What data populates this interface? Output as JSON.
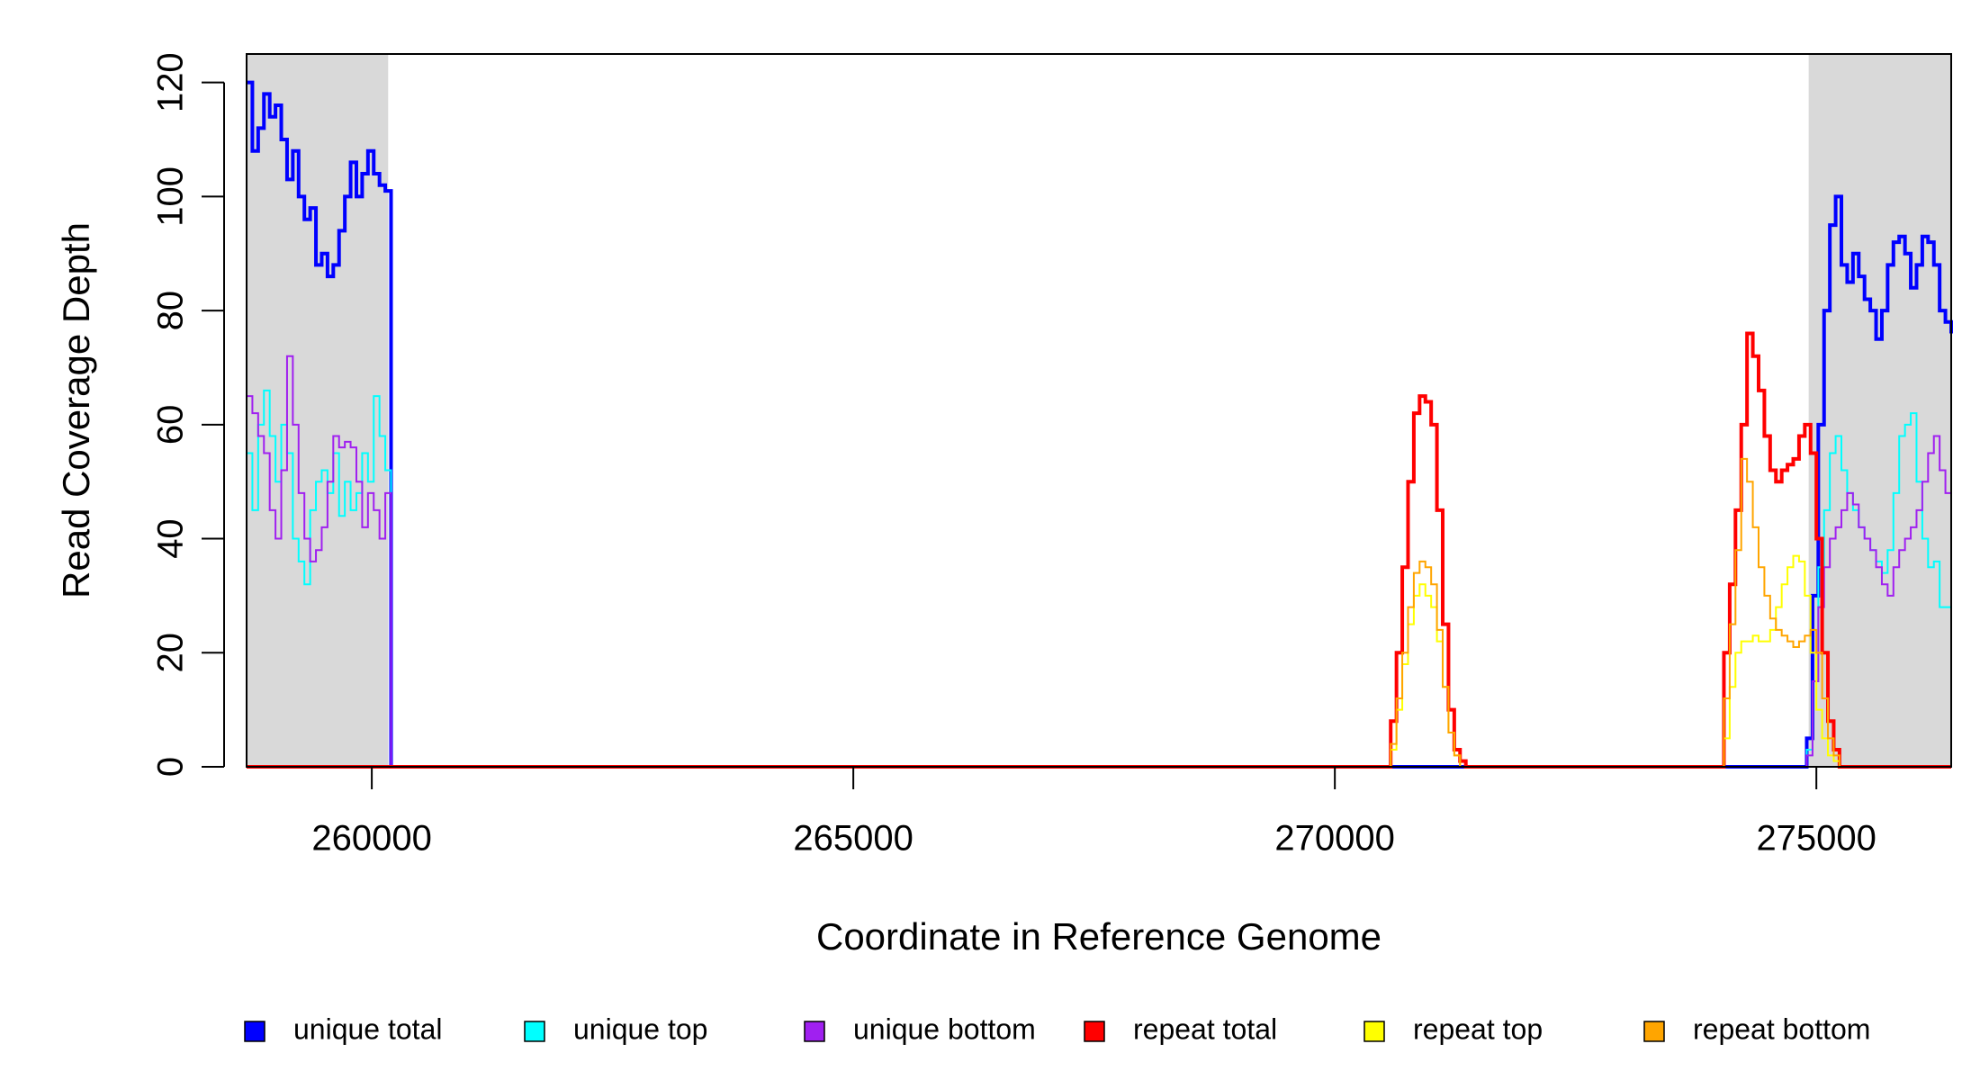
{
  "chart_data": {
    "type": "step",
    "x_label": "Coordinate in Reference Genome",
    "y_label": "Read Coverage Depth",
    "xlim": [
      258700,
      276400
    ],
    "ylim": [
      0,
      125
    ],
    "xticks": [
      260000,
      265000,
      270000,
      275000
    ],
    "yticks": [
      0,
      20,
      40,
      60,
      80,
      100,
      120
    ],
    "shaded_regions": [
      [
        258700,
        260170
      ],
      [
        274920,
        276400
      ]
    ],
    "shade_color": "#d9d9d9",
    "legend": "bottom",
    "series": [
      {
        "name": "unique total",
        "color": "#0000ff",
        "x": [
          258700,
          258760,
          258820,
          258880,
          258940,
          259000,
          259060,
          259120,
          259180,
          259240,
          259300,
          259360,
          259420,
          259480,
          259540,
          259600,
          259660,
          259720,
          259780,
          259840,
          259900,
          259960,
          260020,
          260080,
          260140,
          260200,
          274840,
          274900,
          274960,
          275020,
          275080,
          275140,
          275200,
          275260,
          275320,
          275380,
          275440,
          275500,
          275560,
          275620,
          275680,
          275740,
          275800,
          275860,
          275920,
          275980,
          276040,
          276100,
          276160,
          276220,
          276280,
          276340,
          276400
        ],
        "values": [
          120,
          108,
          112,
          118,
          114,
          116,
          110,
          103,
          108,
          100,
          96,
          98,
          88,
          90,
          86,
          88,
          94,
          100,
          106,
          100,
          104,
          108,
          104,
          102,
          101,
          0,
          0,
          5,
          30,
          60,
          80,
          95,
          100,
          88,
          85,
          90,
          86,
          82,
          80,
          75,
          80,
          88,
          92,
          93,
          90,
          84,
          88,
          93,
          92,
          88,
          80,
          78,
          76
        ]
      },
      {
        "name": "unique top",
        "color": "#00ffff",
        "x": [
          258700,
          258760,
          258820,
          258880,
          258940,
          259000,
          259060,
          259120,
          259180,
          259240,
          259300,
          259360,
          259420,
          259480,
          259540,
          259600,
          259660,
          259720,
          259780,
          259840,
          259900,
          259960,
          260020,
          260080,
          260140,
          260200,
          274840,
          274900,
          274960,
          275020,
          275080,
          275140,
          275200,
          275260,
          275320,
          275380,
          275440,
          275500,
          275560,
          275620,
          275680,
          275740,
          275800,
          275860,
          275920,
          275980,
          276040,
          276100,
          276160,
          276220,
          276280,
          276340,
          276400
        ],
        "values": [
          55,
          45,
          60,
          66,
          58,
          50,
          60,
          55,
          40,
          36,
          32,
          45,
          50,
          52,
          48,
          55,
          44,
          50,
          45,
          48,
          55,
          50,
          65,
          58,
          52,
          0,
          0,
          3,
          15,
          35,
          45,
          55,
          58,
          52,
          48,
          45,
          42,
          40,
          38,
          36,
          34,
          38,
          48,
          58,
          60,
          62,
          50,
          40,
          35,
          36,
          28,
          28,
          29
        ]
      },
      {
        "name": "unique bottom",
        "color": "#a020f0",
        "x": [
          258700,
          258760,
          258820,
          258880,
          258940,
          259000,
          259060,
          259120,
          259180,
          259240,
          259300,
          259360,
          259420,
          259480,
          259540,
          259600,
          259660,
          259720,
          259780,
          259840,
          259900,
          259960,
          260020,
          260080,
          260140,
          260200,
          274840,
          274900,
          274960,
          275020,
          275080,
          275140,
          275200,
          275260,
          275320,
          275380,
          275440,
          275500,
          275560,
          275620,
          275680,
          275740,
          275800,
          275860,
          275920,
          275980,
          276040,
          276100,
          276160,
          276220,
          276280,
          276340,
          276400
        ],
        "values": [
          65,
          62,
          58,
          55,
          45,
          40,
          52,
          72,
          60,
          48,
          40,
          36,
          38,
          42,
          50,
          58,
          56,
          57,
          56,
          50,
          42,
          48,
          45,
          40,
          48,
          0,
          0,
          2,
          15,
          28,
          35,
          40,
          42,
          45,
          48,
          46,
          42,
          40,
          38,
          35,
          32,
          30,
          35,
          38,
          40,
          42,
          45,
          50,
          55,
          58,
          52,
          48,
          45
        ]
      },
      {
        "name": "repeat total",
        "color": "#ff0000",
        "x": [
          258700,
          270520,
          270580,
          270640,
          270700,
          270760,
          270820,
          270880,
          270940,
          271000,
          271060,
          271120,
          271180,
          271240,
          271300,
          271360,
          273980,
          274040,
          274100,
          274160,
          274220,
          274280,
          274340,
          274400,
          274460,
          274520,
          274580,
          274640,
          274700,
          274760,
          274820,
          274880,
          274940,
          275000,
          275060,
          275120,
          275180,
          275240,
          276400
        ],
        "values": [
          0,
          0,
          8,
          20,
          35,
          50,
          62,
          65,
          64,
          60,
          45,
          25,
          10,
          3,
          1,
          0,
          0,
          20,
          32,
          45,
          60,
          76,
          72,
          66,
          58,
          52,
          50,
          52,
          53,
          54,
          58,
          60,
          55,
          40,
          20,
          8,
          3,
          0,
          0
        ]
      },
      {
        "name": "repeat top",
        "color": "#ffff00",
        "x": [
          258700,
          270520,
          270580,
          270640,
          270700,
          270760,
          270820,
          270880,
          270940,
          271000,
          271060,
          271120,
          271180,
          271240,
          271300,
          271360,
          273980,
          274040,
          274100,
          274160,
          274220,
          274280,
          274340,
          274400,
          274460,
          274520,
          274580,
          274640,
          274700,
          274760,
          274820,
          274880,
          274940,
          275000,
          275060,
          275120,
          275180,
          275240,
          276400
        ],
        "values": [
          0,
          0,
          3,
          10,
          18,
          25,
          30,
          32,
          30,
          28,
          22,
          14,
          6,
          2,
          0,
          0,
          0,
          5,
          14,
          20,
          22,
          22,
          23,
          22,
          22,
          24,
          28,
          32,
          35,
          37,
          36,
          30,
          20,
          10,
          5,
          2,
          1,
          0,
          0
        ]
      },
      {
        "name": "repeat bottom",
        "color": "#ffa500",
        "x": [
          258700,
          270520,
          270580,
          270640,
          270700,
          270760,
          270820,
          270880,
          270940,
          271000,
          271060,
          271120,
          271180,
          271240,
          271300,
          271360,
          273980,
          274040,
          274100,
          274160,
          274220,
          274280,
          274340,
          274400,
          274460,
          274520,
          274580,
          274640,
          274700,
          274760,
          274820,
          274880,
          274940,
          275000,
          275060,
          275120,
          275180,
          275240,
          276400
        ],
        "values": [
          0,
          0,
          4,
          12,
          20,
          28,
          34,
          36,
          35,
          32,
          24,
          14,
          6,
          2,
          0,
          0,
          0,
          12,
          25,
          38,
          54,
          50,
          42,
          35,
          30,
          26,
          24,
          23,
          22,
          21,
          22,
          23,
          24,
          20,
          12,
          5,
          2,
          0,
          0
        ]
      }
    ]
  }
}
